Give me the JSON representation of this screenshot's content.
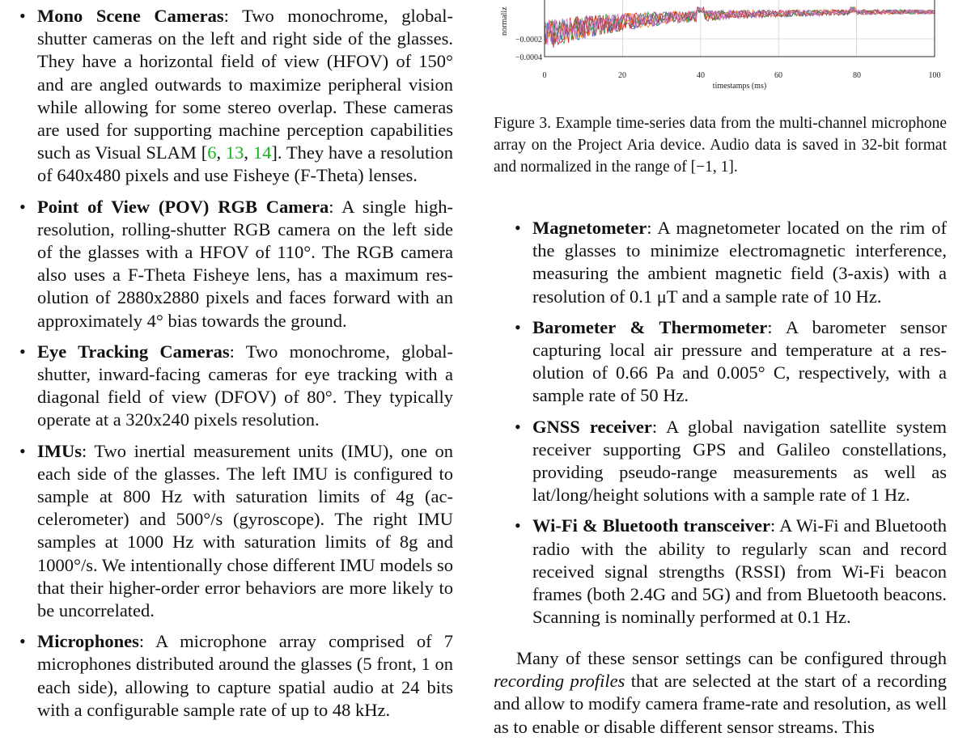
{
  "left_items": [
    {
      "term": "Mono Scene Cameras",
      "text_a": ": Two monochrome, global-shutter cameras on the left and right side of the glasses. They have a horizontal field of view (HFOV) of 150° and are angled outwards to maximize peripheral vision while allowing for some stereo overlap. These cameras are used for supporting machine perception capabili­ties such as Visual SLAM [",
      "cite1": "6",
      "sep1": ", ",
      "cite2": "13",
      "sep2": ", ",
      "cite3": "14",
      "text_b": "]. They have a res­olution of 640x480 pixels and use Fisheye (F-Theta) lenses."
    },
    {
      "term": "Point of View (POV) RGB Camera",
      "text": ": A single high-resolution, rolling-shutter RGB camera on the left side of the glasses with a HFOV of 110°. The RGB camera also uses a F-Theta Fisheye lens, has a maximum res­olution of 2880x2880 pixels and faces forward with an approximately 4° bias towards the ground."
    },
    {
      "term": "Eye Tracking Cameras",
      "text": ": Two monochrome, global-shutter, inward-facing cameras for eye tracking with a diagonal field of view (DFOV) of 80°. They typically operate at a 320x240 pixels resolution."
    },
    {
      "term": "IMUs",
      "text": ": Two inertial measurement units (IMU), one on each side of the glasses. The left IMU is configured to sample at 800 Hz with saturation limits of 4g (ac­celerometer) and 500°/s (gyroscope). The right IMU samples at 1000 Hz with saturation limits of 8g and 1000°/s. We intentionally chose different IMU mod­els so that their higher-order error behaviors are more likely to be uncorrelated."
    },
    {
      "term": "Microphones",
      "text": ": A microphone array comprised of 7 microphones distributed around the glasses (5 front, 1 on each side), allowing to capture spatial audio at 24 bits with a configurable sample rate of up to 48 kHz."
    }
  ],
  "figure": {
    "ylabel_visible": "normaliz",
    "xlabel": "timestamps (ms)"
  },
  "chart_data": {
    "type": "line",
    "xlabel": "timestamps (ms)",
    "ylabel": "normaliz",
    "x_ticks": [
      "0",
      "20",
      "40",
      "60",
      "80",
      "100"
    ],
    "y_ticks": [
      "−0.0002",
      "−0.0004"
    ],
    "xlim": [
      0,
      100
    ],
    "ylim": [
      -0.00045,
      0.0
    ],
    "series_colors": [
      "#1f77b4",
      "#ff7f0e",
      "#2ca02c",
      "#d62728",
      "#9467bd",
      "#8c564b",
      "#e377c2"
    ],
    "series_note": "7 overlapping audio channels, only lower portion visible"
  },
  "caption": "Figure 3. Example time-series data from the multi-channel micro­phone array on the Project Aria device. Audio data is saved in 32-bit format and normalized in the range of [−1, 1].",
  "right_items": [
    {
      "term": "Magnetometer",
      "text": ": A magnetometer located on the rim of the glasses to minimize electromagnetic interfer­ence, measuring the ambient magnetic field (3-axis) with a resolution of 0.1 μT and a sample rate of 10 Hz."
    },
    {
      "term": "Barometer & Thermometer",
      "text": ": A barometer sensor capturing local air pressure and temperature at a res­olution of 0.66 Pa and 0.005° C, respectively, with a sample rate of 50 Hz."
    },
    {
      "term": "GNSS receiver",
      "text": ": A global navigation satellite sys­tem receiver supporting GPS and Galileo constella­tions, providing pseudo-range measurements as well as lat/long/height solutions with a sample rate of 1 Hz."
    },
    {
      "term": "Wi-Fi & Bluetooth transceiver",
      "text": ": A Wi-Fi and Blue­tooth radio with the ability to regularly scan and record received signal strengths (RSSI) from Wi-Fi beacon frames (both 2.4G and 5G) and from Bluetooth bea­cons. Scanning is nominally performed at 0.1 Hz."
    }
  ],
  "body": {
    "before": "Many of these sensor settings can be configured through ",
    "emph": "recording profiles",
    "after": " that are selected at the start of a record­ing and allow to modify camera frame-rate and resolution, as well as to enable or disable different sensor streams. This"
  }
}
